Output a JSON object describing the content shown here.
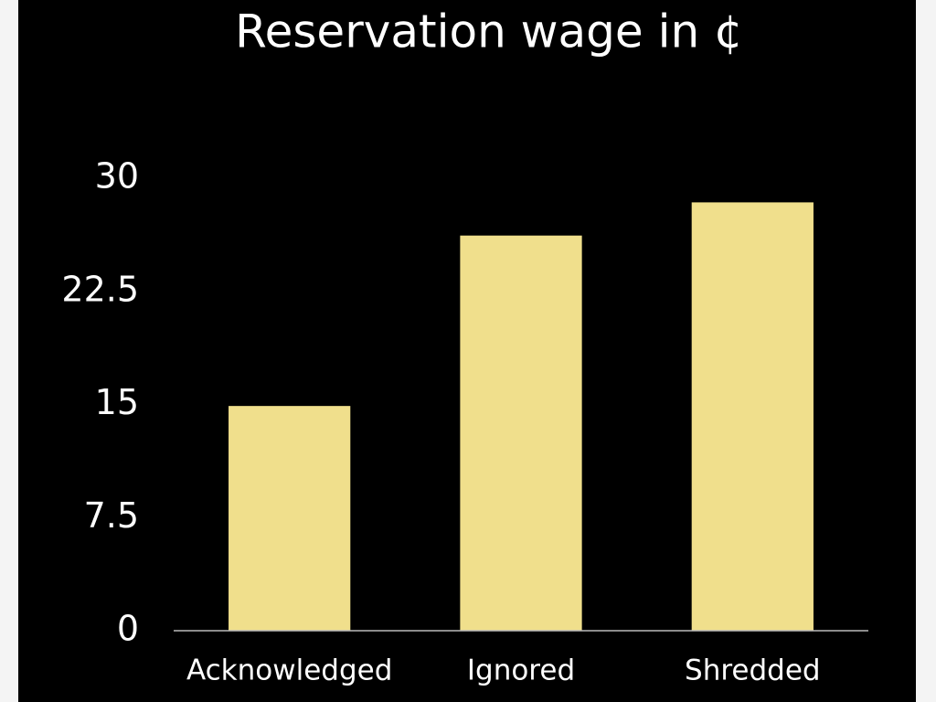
{
  "chart_data": {
    "type": "bar",
    "title": "Reservation wage in ¢",
    "categories": [
      "Acknowledged",
      "Ignored",
      "Shredded"
    ],
    "values": [
      14.9,
      26.2,
      28.4
    ],
    "color": "#f0df8c",
    "ylim": [
      0,
      30
    ],
    "yticks": [
      0,
      7.5,
      15,
      22.5,
      30
    ],
    "grid": false
  }
}
